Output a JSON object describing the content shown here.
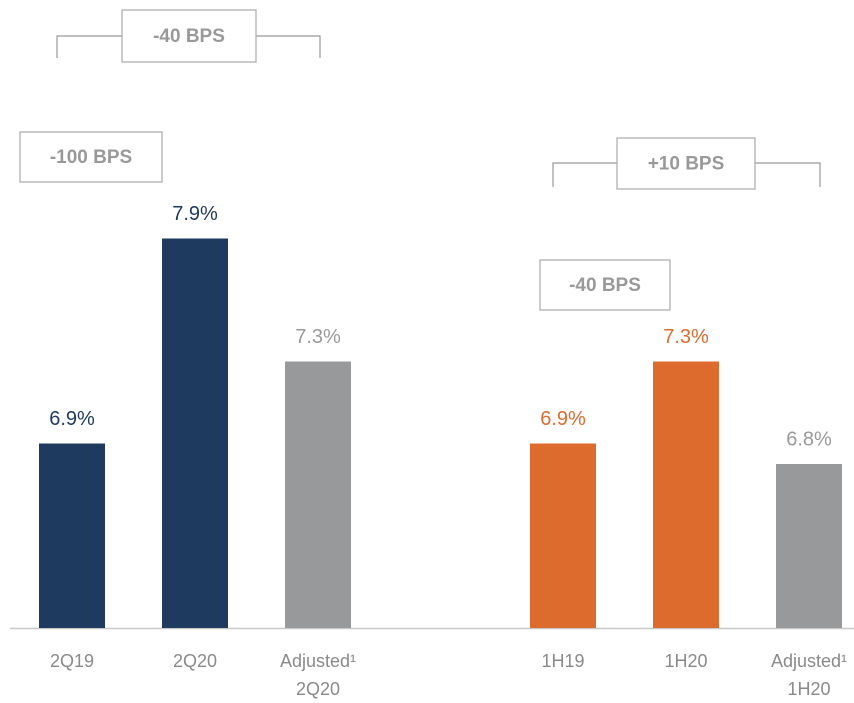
{
  "chart_data": {
    "type": "bar",
    "categories": [
      "2Q19",
      "2Q20",
      "Adjusted¹\n2Q20",
      "1H19",
      "1H20",
      "Adjusted¹\n1H20"
    ],
    "values": [
      6.9,
      7.9,
      7.3,
      6.9,
      7.3,
      6.8
    ],
    "value_labels": [
      "6.9%",
      "7.9%",
      "7.3%",
      "6.9%",
      "7.3%",
      "6.8%"
    ],
    "colors": [
      "#1f3a5f",
      "#1f3a5f",
      "#98999b",
      "#dd6b2e",
      "#dd6b2e",
      "#98999b"
    ],
    "ylim": [
      6,
      8.5
    ],
    "annotations": [
      "-40 BPS",
      "-100 BPS",
      "+10 BPS",
      "-40 BPS"
    ]
  }
}
